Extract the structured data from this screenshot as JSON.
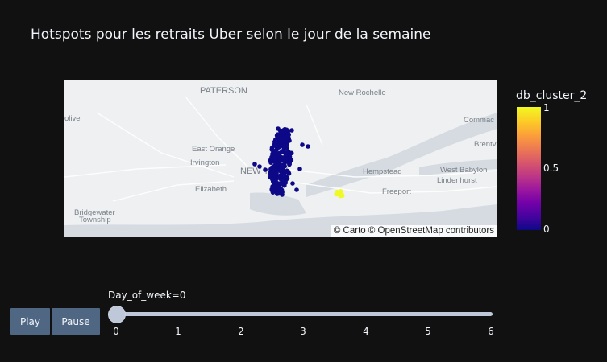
{
  "title": "Hotspots pour les retraits Uber selon le jour de la semaine",
  "map": {
    "attribution": "© Carto © OpenStreetMap contributors",
    "labels": [
      {
        "text": "PATERSON",
        "big": true
      },
      {
        "text": "New Rochelle",
        "big": false
      },
      {
        "text": "olive",
        "big": false
      },
      {
        "text": "Commac",
        "big": false
      },
      {
        "text": "Brentv",
        "big": false
      },
      {
        "text": "East Orange",
        "big": false
      },
      {
        "text": "Irvington",
        "big": false
      },
      {
        "text": "NEW YORK",
        "big": true
      },
      {
        "text": "Hempstead",
        "big": false
      },
      {
        "text": "West Babylon",
        "big": false
      },
      {
        "text": "Lindenhurst",
        "big": false
      },
      {
        "text": "Elizabeth",
        "big": false
      },
      {
        "text": "Freeport",
        "big": false
      },
      {
        "text": "Bridgewater",
        "big": false
      },
      {
        "text": "Township",
        "big": false
      }
    ]
  },
  "colorbar": {
    "title": "db_cluster_2",
    "ticks": [
      "1",
      "0.5",
      "0"
    ],
    "colors": [
      "#0d0887",
      "#46039f",
      "#7201a8",
      "#9c179e",
      "#bd3786",
      "#d8576b",
      "#ed7953",
      "#fb9f3a",
      "#fdca26",
      "#f0f921"
    ]
  },
  "controls": {
    "play": "Play",
    "pause": "Pause",
    "slider_label": "Day_of_week=0",
    "steps": [
      "0",
      "1",
      "2",
      "3",
      "4",
      "5",
      "6"
    ],
    "current": 0
  }
}
